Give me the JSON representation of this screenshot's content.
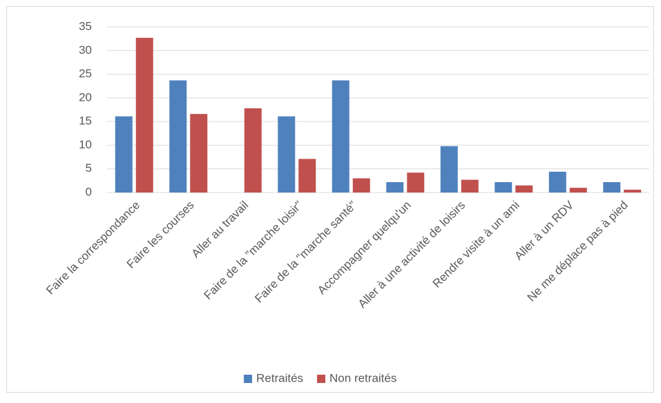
{
  "chart_data": {
    "type": "bar",
    "categories": [
      "Faire la correspondance",
      "Faire les courses",
      "Aller au travail",
      "Faire de la \"marche loisir\"",
      "Faire de la \"marche santé\"",
      "Accompagner quelqu'un",
      "Aller à une activité de loisirs",
      "Rendre visite à un ami",
      "Aller à un RDV",
      "Ne me déplace pas à pied"
    ],
    "series": [
      {
        "name": "Retraités",
        "color": "#4f81bd",
        "values": [
          16.1,
          23.7,
          0,
          16.1,
          23.7,
          2.2,
          9.8,
          2.2,
          4.4,
          2.2
        ]
      },
      {
        "name": "Non retraités",
        "color": "#c0504d",
        "values": [
          32.7,
          16.6,
          17.8,
          7.1,
          3.0,
          4.2,
          2.7,
          1.5,
          1.0,
          0.6
        ]
      }
    ],
    "ylim": [
      0,
      35
    ],
    "yticks": [
      0,
      5,
      10,
      15,
      20,
      25,
      30,
      35
    ],
    "grid": true,
    "legend": "bottom"
  }
}
